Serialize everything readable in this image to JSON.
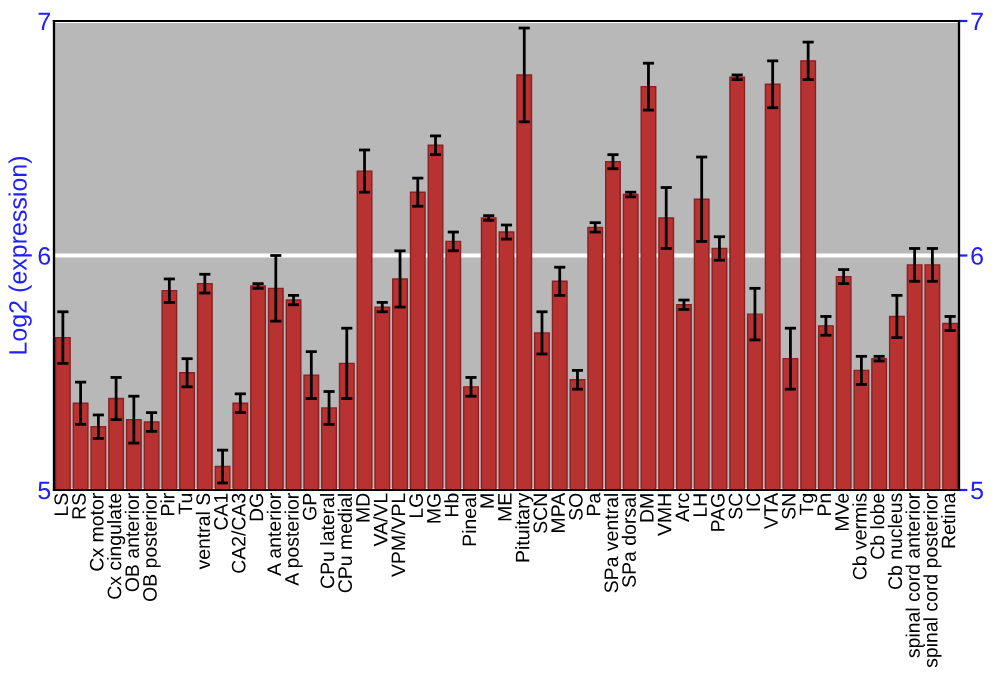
{
  "chart_data": {
    "type": "bar",
    "ylabel": "Log2 (expression)",
    "categories": [
      "LS",
      "RS",
      "Cx motor",
      "Cx cingulate",
      "OB anterior",
      "OB posterior",
      "Pir",
      "Tu",
      "ventral S",
      "CA1",
      "CA2/CA3",
      "DG",
      "A anterior",
      "A posterior",
      "GP",
      "CPu lateral",
      "CPu medial",
      "MD",
      "VA/VL",
      "VPM/VPL",
      "LG",
      "MG",
      "Hb",
      "Pineal",
      "M",
      "ME",
      "Pituitary",
      "SCN",
      "MPA",
      "SO",
      "Pa",
      "SPa ventral",
      "SPa dorsal",
      "DM",
      "VMH",
      "Arc",
      "LH",
      "PAG",
      "SC",
      "IC",
      "VTA",
      "SN",
      "Tg",
      "Pn",
      "MVe",
      "Cb vermis",
      "Cb lobe",
      "Cb nucleus",
      "spinal cord anterior",
      "spinal cord posterior",
      "Retina"
    ],
    "values": [
      5.65,
      5.37,
      5.27,
      5.39,
      5.3,
      5.29,
      5.85,
      5.5,
      5.88,
      5.1,
      5.37,
      5.87,
      5.86,
      5.81,
      5.49,
      5.35,
      5.54,
      6.36,
      5.78,
      5.9,
      6.27,
      6.47,
      6.06,
      5.44,
      6.16,
      6.1,
      6.77,
      5.67,
      5.89,
      5.47,
      6.12,
      6.4,
      6.26,
      6.72,
      6.16,
      5.79,
      6.24,
      6.03,
      6.76,
      5.75,
      6.73,
      5.56,
      6.83,
      5.7,
      5.91,
      5.51,
      5.56,
      5.74,
      5.96,
      5.96,
      5.71
    ],
    "errors": [
      0.11,
      0.09,
      0.05,
      0.09,
      0.1,
      0.04,
      0.05,
      0.06,
      0.04,
      0.07,
      0.04,
      0.01,
      0.14,
      0.02,
      0.1,
      0.07,
      0.15,
      0.09,
      0.02,
      0.12,
      0.06,
      0.04,
      0.04,
      0.04,
      0.01,
      0.03,
      0.2,
      0.09,
      0.06,
      0.04,
      0.02,
      0.03,
      0.01,
      0.1,
      0.13,
      0.02,
      0.18,
      0.05,
      0.01,
      0.11,
      0.1,
      0.13,
      0.08,
      0.04,
      0.03,
      0.06,
      0.01,
      0.09,
      0.07,
      0.07,
      0.03
    ],
    "color": "#b83232",
    "ylim": [
      5,
      7
    ],
    "yticks": [
      5,
      6,
      7
    ],
    "y2lim": [
      5,
      7
    ],
    "y2ticks": [
      5,
      6,
      7
    ],
    "grid": "y",
    "legend": false
  }
}
